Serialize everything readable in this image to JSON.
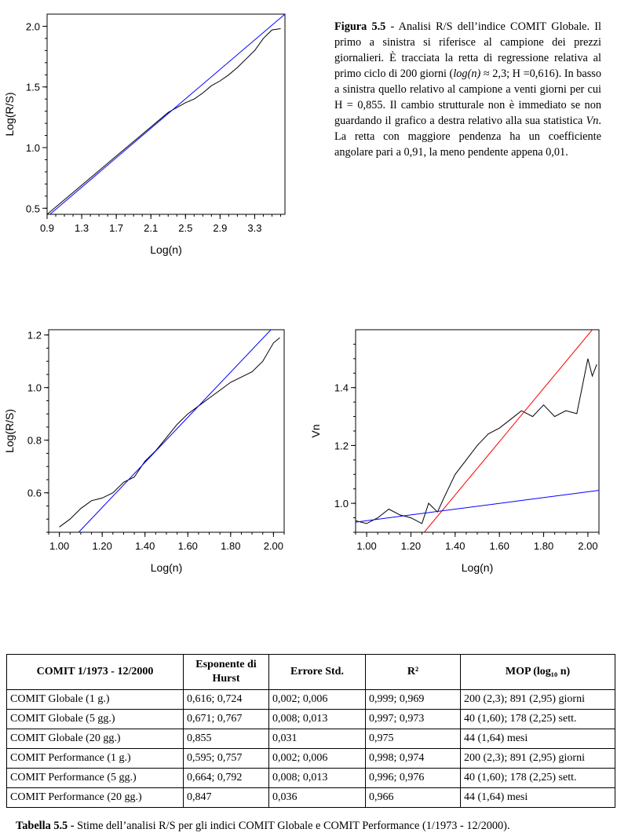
{
  "caption": {
    "label": "Figura 5.5",
    "text_parts": [
      " - Analisi R/S dell’indice ",
      "COMIT",
      " Globale. Il primo a sinistra si riferisce al campione dei prezzi giornalieri. È tracciata la retta di regressione relativa al primo ciclo di 200 giorni (",
      "log(n)",
      " ≈ 2,3; H =0,616). In basso a sinistra quello relativo al campione a venti giorni per cui H = 0,855. Il cambio strutturale non è immediato se non guardando il grafico a destra relativo alla sua statistica ",
      "Vn",
      ". La retta con maggiore pendenza ha un coefficiente angolare pari a 0,91, la meno pendente appena 0,01."
    ]
  },
  "chart_data": [
    {
      "type": "line",
      "xlabel": "Log(n)",
      "ylabel": "Log(R/S)",
      "xlim": [
        0.9,
        3.65
      ],
      "ylim": [
        0.45,
        2.1
      ],
      "x_ticks": [
        "0.9",
        "1.3",
        "1.7",
        "2.1",
        "2.5",
        "2.9",
        "3.3"
      ],
      "y_ticks": [
        "0.5",
        "1.0",
        "1.5",
        "2.0"
      ],
      "series": [
        {
          "color": "#000000",
          "x": [
            0.9,
            1.1,
            1.3,
            1.5,
            1.7,
            1.9,
            2.1,
            2.3,
            2.5,
            2.6,
            2.7,
            2.8,
            2.9,
            3.0,
            3.1,
            3.2,
            3.3,
            3.4,
            3.5,
            3.6
          ],
          "y": [
            0.45,
            0.57,
            0.69,
            0.81,
            0.93,
            1.05,
            1.17,
            1.29,
            1.37,
            1.4,
            1.45,
            1.51,
            1.55,
            1.6,
            1.66,
            1.73,
            1.8,
            1.9,
            1.97,
            1.98
          ]
        },
        {
          "color": "#0000ff",
          "x": [
            0.9,
            3.65
          ],
          "y": [
            0.43,
            2.1
          ]
        }
      ]
    },
    {
      "type": "line",
      "xlabel": "Log(n)",
      "ylabel": "Log(R/S)",
      "xlim": [
        0.95,
        2.05
      ],
      "ylim": [
        0.45,
        1.22
      ],
      "x_ticks": [
        "1.00",
        "1.20",
        "1.40",
        "1.60",
        "1.80",
        "2.00"
      ],
      "y_ticks": [
        "0.6",
        "0.8",
        "1.0",
        "1.2"
      ],
      "series": [
        {
          "color": "#000000",
          "x": [
            1.0,
            1.05,
            1.1,
            1.15,
            1.2,
            1.25,
            1.3,
            1.35,
            1.4,
            1.45,
            1.5,
            1.55,
            1.6,
            1.65,
            1.7,
            1.75,
            1.8,
            1.85,
            1.9,
            1.95,
            2.0,
            2.03
          ],
          "y": [
            0.47,
            0.5,
            0.54,
            0.57,
            0.58,
            0.6,
            0.64,
            0.66,
            0.72,
            0.76,
            0.81,
            0.86,
            0.9,
            0.93,
            0.96,
            0.99,
            1.02,
            1.04,
            1.06,
            1.1,
            1.17,
            1.19
          ]
        },
        {
          "color": "#0000ff",
          "x": [
            1.09,
            2.0
          ],
          "y": [
            0.45,
            1.23
          ]
        }
      ]
    },
    {
      "type": "line",
      "xlabel": "Log(n)",
      "ylabel": "Vn",
      "xlim": [
        0.95,
        2.05
      ],
      "ylim": [
        0.9,
        1.6
      ],
      "x_ticks": [
        "1.00",
        "1.20",
        "1.40",
        "1.60",
        "1.80",
        "2.00"
      ],
      "y_ticks": [
        "1.0",
        "1.2",
        "1.4"
      ],
      "series": [
        {
          "color": "#000000",
          "x": [
            0.95,
            1.0,
            1.05,
            1.1,
            1.15,
            1.2,
            1.25,
            1.28,
            1.32,
            1.35,
            1.4,
            1.45,
            1.5,
            1.55,
            1.6,
            1.65,
            1.7,
            1.75,
            1.8,
            1.85,
            1.9,
            1.95,
            2.0,
            2.02,
            2.04
          ],
          "y": [
            0.94,
            0.93,
            0.95,
            0.98,
            0.96,
            0.95,
            0.93,
            1.0,
            0.97,
            1.02,
            1.1,
            1.15,
            1.2,
            1.24,
            1.26,
            1.29,
            1.32,
            1.3,
            1.34,
            1.3,
            1.32,
            1.31,
            1.5,
            1.44,
            1.48
          ]
        },
        {
          "color": "#ff0000",
          "x": [
            1.26,
            2.02
          ],
          "y": [
            0.9,
            1.6
          ]
        },
        {
          "color": "#0000ff",
          "x": [
            0.95,
            2.05
          ],
          "y": [
            0.935,
            1.045
          ]
        }
      ]
    }
  ],
  "table": {
    "headers": [
      "COMIT 1/1973 - 12/2000",
      "Esponente di Hurst",
      "Errore Std.",
      "R²",
      "MOP  (log₁₀ n)"
    ],
    "rows": [
      [
        "COMIT Globale (1 g.)",
        "0,616; 0,724",
        "0,002; 0,006",
        "0,999; 0,969",
        "200 (2,3); 891 (2,95) giorni"
      ],
      [
        "COMIT Globale (5 gg.)",
        "0,671; 0,767",
        "0,008; 0,013",
        "0,997; 0,973",
        "40 (1,60); 178 (2,25) sett."
      ],
      [
        "COMIT Globale (20 gg.)",
        "0,855",
        "0,031",
        "0,975",
        "44 (1,64) mesi"
      ],
      [
        "COMIT Performance (1 g.)",
        "0,595; 0,757",
        "0,002; 0,006",
        "0,998; 0,974",
        "200 (2,3); 891 (2,95) giorni"
      ],
      [
        "COMIT Performance (5 gg.)",
        "0,664; 0,792",
        "0,008; 0,013",
        "0,996; 0,976",
        "40 (1,60); 178 (2,25) sett."
      ],
      [
        "COMIT Performance (20 gg.)",
        "0,847",
        "0,036",
        "0,966",
        "44 (1,64) mesi"
      ]
    ]
  },
  "table_caption": {
    "label": "Tabella 5.5 -",
    "text": " Stime dell’analisi R/S per gli indici COMIT Globale e COMIT Performance (1/1973 - 12/2000)."
  }
}
